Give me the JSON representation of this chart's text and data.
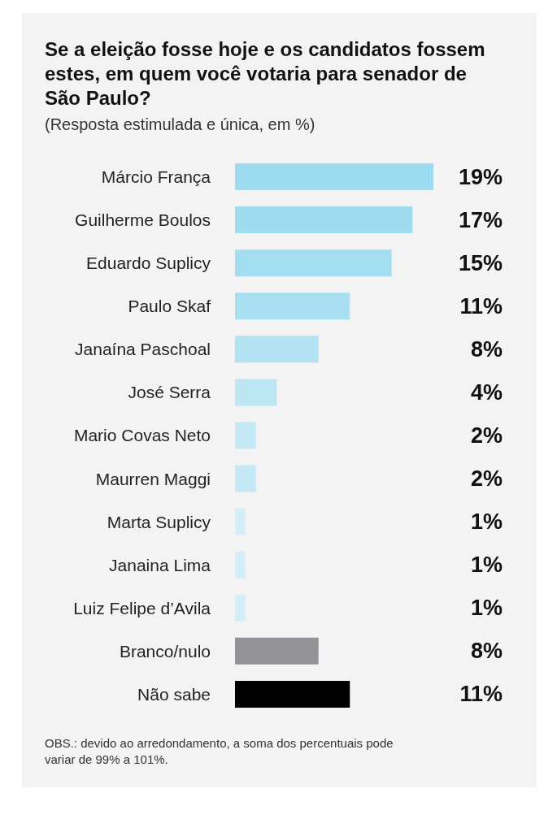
{
  "chart_data": {
    "type": "bar",
    "orientation": "horizontal",
    "title": "Se a eleição fosse hoje e os candidatos fossem estes, em quem você votaria para senador de São Paulo?",
    "subtitle": "(Resposta estimulada e única, em %)",
    "categories": [
      "Márcio França",
      "Guilherme Boulos",
      "Eduardo Suplicy",
      "Paulo Skaf",
      "Janaína Paschoal",
      "José Serra",
      "Mario Covas Neto",
      "Maurren Maggi",
      "Marta Suplicy",
      "Janaina Lima",
      "Luiz Felipe d’Avila",
      "Branco/nulo",
      "Não sabe"
    ],
    "values": [
      19,
      17,
      15,
      11,
      8,
      4,
      2,
      2,
      1,
      1,
      1,
      8,
      11
    ],
    "value_labels": [
      "19%",
      "17%",
      "15%",
      "11%",
      "8%",
      "4%",
      "2%",
      "2%",
      "1%",
      "1%",
      "1%",
      "8%",
      "11%"
    ],
    "colors": [
      "#9ddcf0",
      "#9fdcf0",
      "#a2ddf0",
      "#a8dff1",
      "#b3e3f2",
      "#bde6f3",
      "#c5e9f4",
      "#c5e9f4",
      "#d3eef6",
      "#d3eef6",
      "#d3eef6",
      "#939397",
      "#000000"
    ],
    "annotations": [
      "OBS.: devido ao arredondamento, a soma dos percentuais pode variar de 99% a 101%."
    ]
  }
}
